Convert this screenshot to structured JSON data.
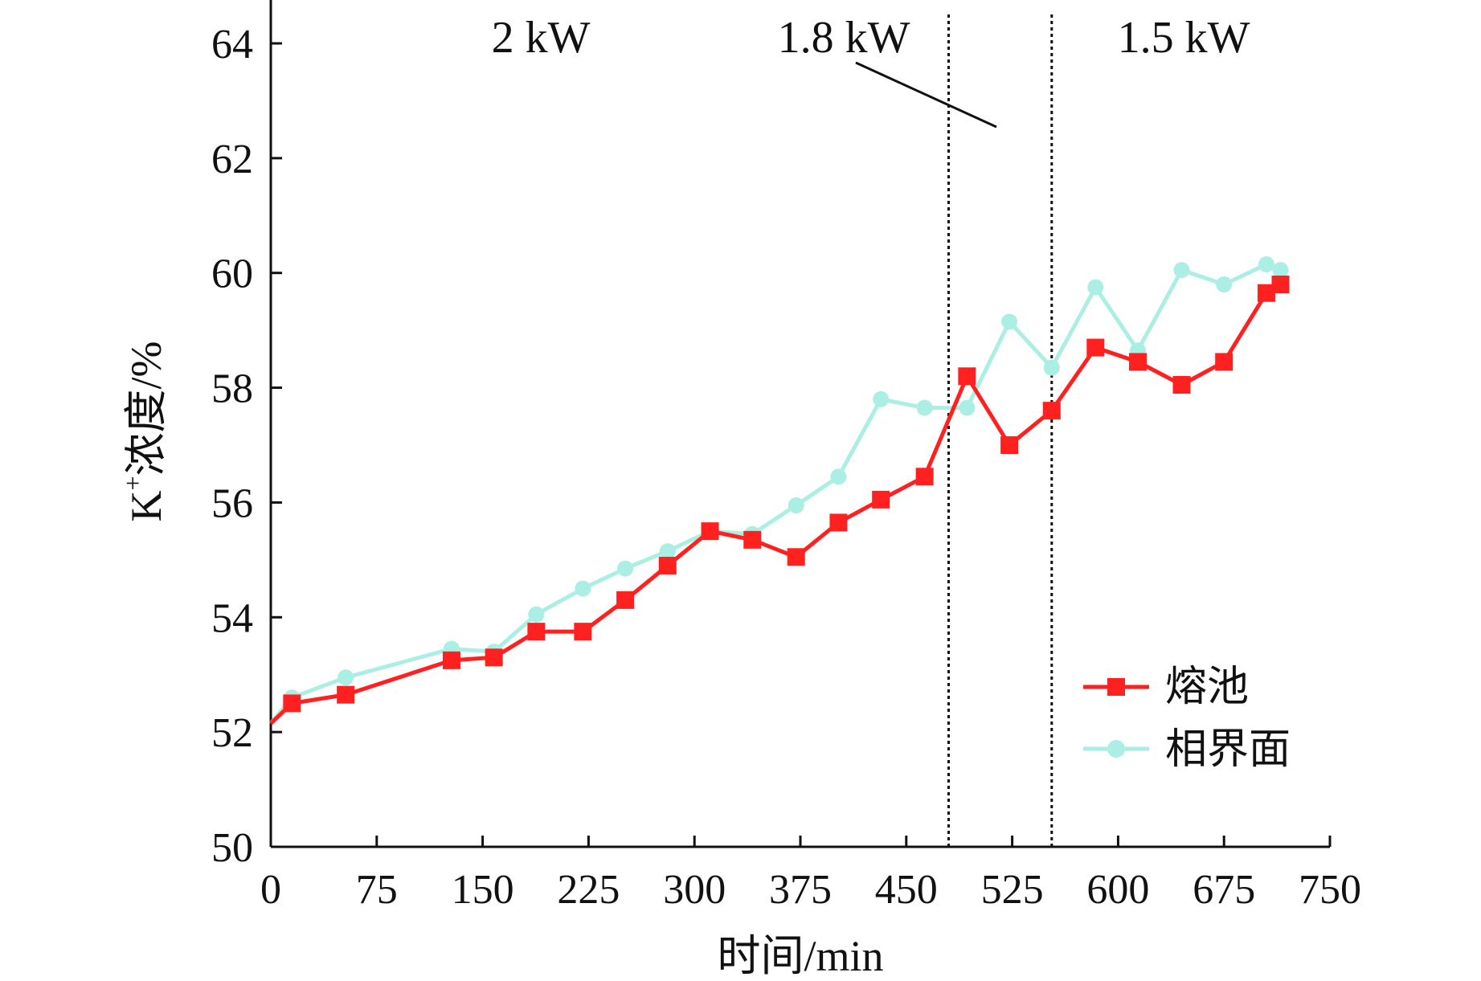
{
  "chart_data": {
    "type": "line",
    "xlabel": "时间/min",
    "ylabel_base": "K",
    "ylabel_sup": "+",
    "ylabel_rest": "浓度/%",
    "xlim": [
      0,
      750
    ],
    "ylim": [
      50,
      65
    ],
    "xticks": [
      0,
      75,
      150,
      225,
      300,
      375,
      450,
      525,
      600,
      675,
      750
    ],
    "yticks": [
      50,
      52,
      54,
      56,
      58,
      60,
      62,
      64
    ],
    "grid": false,
    "legend_position": "bottom-right",
    "vlines": [
      480,
      553
    ],
    "annotations": [
      "2 kW",
      "1.8 kW",
      "1.5 kW"
    ],
    "series": [
      {
        "name": "熔池",
        "color": "#ff2020",
        "marker": "square",
        "x": [
          0,
          15,
          53,
          128,
          158,
          188,
          221,
          251,
          281,
          311,
          341,
          372,
          402,
          432,
          463,
          493,
          523,
          553,
          584,
          614,
          645,
          675,
          705,
          715
        ],
        "y": [
          52.15,
          52.5,
          52.65,
          53.25,
          53.3,
          53.75,
          53.75,
          54.3,
          54.9,
          55.5,
          55.35,
          55.05,
          55.65,
          56.05,
          56.45,
          58.2,
          57.0,
          57.6,
          58.7,
          58.45,
          58.05,
          58.45,
          59.65,
          59.8
        ]
      },
      {
        "name": "相界面",
        "color": "#aaeee4",
        "marker": "circle",
        "x": [
          0,
          15,
          53,
          128,
          158,
          188,
          221,
          251,
          281,
          311,
          341,
          372,
          402,
          432,
          463,
          493,
          523,
          553,
          584,
          614,
          645,
          675,
          705,
          715
        ],
        "y": [
          52.15,
          52.6,
          52.95,
          53.45,
          53.4,
          54.05,
          54.5,
          54.85,
          55.15,
          55.5,
          55.45,
          55.95,
          56.45,
          57.8,
          57.65,
          57.65,
          59.15,
          58.35,
          59.75,
          58.65,
          60.05,
          59.8,
          60.15,
          60.05
        ]
      }
    ]
  }
}
